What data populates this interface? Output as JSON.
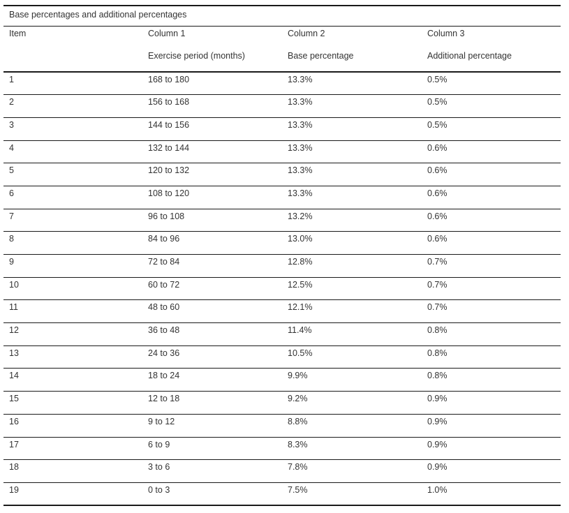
{
  "table": {
    "caption": "Base percentages and additional percentages",
    "header_row1": [
      "Item",
      "Column 1",
      "Column 2",
      "Column 3"
    ],
    "header_row2": [
      "",
      "Exercise period (months)",
      "Base percentage",
      "Additional percentage"
    ],
    "rows": [
      [
        "1",
        "168 to 180",
        "13.3%",
        "0.5%"
      ],
      [
        "2",
        "156 to 168",
        "13.3%",
        "0.5%"
      ],
      [
        "3",
        "144 to 156",
        "13.3%",
        "0.5%"
      ],
      [
        "4",
        "132 to 144",
        "13.3%",
        "0.6%"
      ],
      [
        "5",
        "120 to 132",
        "13.3%",
        "0.6%"
      ],
      [
        "6",
        "108 to 120",
        "13.3%",
        "0.6%"
      ],
      [
        "7",
        "96 to 108",
        "13.2%",
        "0.6%"
      ],
      [
        "8",
        "84 to 96",
        "13.0%",
        "0.6%"
      ],
      [
        "9",
        "72 to 84",
        "12.8%",
        "0.7%"
      ],
      [
        "10",
        "60 to 72",
        "12.5%",
        "0.7%"
      ],
      [
        "11",
        "48 to 60",
        "12.1%",
        "0.7%"
      ],
      [
        "12",
        "36 to 48",
        "11.4%",
        "0.8%"
      ],
      [
        "13",
        "24 to 36",
        "10.5%",
        "0.8%"
      ],
      [
        "14",
        "18 to 24",
        "9.9%",
        "0.8%"
      ],
      [
        "15",
        "12 to 18",
        "9.2%",
        "0.9%"
      ],
      [
        "16",
        "9 to 12",
        "8.8%",
        "0.9%"
      ],
      [
        "17",
        "6 to 9",
        "8.3%",
        "0.9%"
      ],
      [
        "18",
        "3 to 6",
        "7.8%",
        "0.9%"
      ],
      [
        "19",
        "0 to 3",
        "7.5%",
        "1.0%"
      ]
    ]
  }
}
